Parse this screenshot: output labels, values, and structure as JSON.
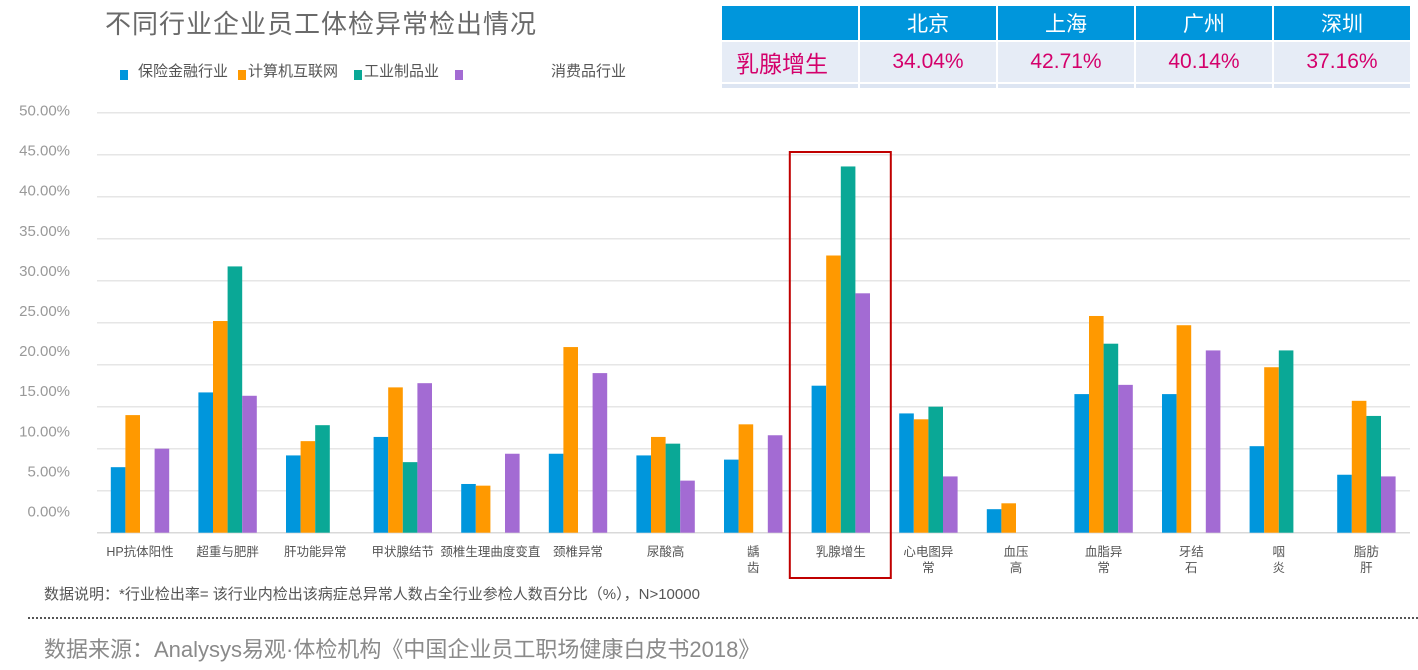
{
  "title": "不同行业企业员工体检异常检出情况",
  "table": {
    "headers": [
      "",
      "北京",
      "上海",
      "广州",
      "深圳"
    ],
    "row_label": "乳腺增生",
    "values": [
      "34.04%",
      "42.71%",
      "40.14%",
      "37.16%"
    ],
    "header_color": "#0096dc",
    "value_color": "#d4006b"
  },
  "chart_data": {
    "type": "bar",
    "title": "不同行业企业员工体检异常检出情况",
    "xlabel": "",
    "ylabel": "",
    "ylim": [
      0,
      50
    ],
    "grid": true,
    "legend_position": "top-left",
    "y_ticks": [
      "0.00%",
      "5.00%",
      "10.00%",
      "15.00%",
      "20.00%",
      "25.00%",
      "30.00%",
      "35.00%",
      "40.00%",
      "45.00%",
      "50.00%"
    ],
    "categories": [
      "HP抗体阳性",
      "超重与肥胖",
      "肝功能异常",
      "甲状腺结节",
      "颈椎生理曲度变直",
      "颈椎异常",
      "尿酸高",
      "龋\n齿",
      "乳腺增生",
      "心电图异\n常",
      "血压\n高",
      "血脂异\n常",
      "牙结\n石",
      "咽\n炎",
      "脂肪\n肝"
    ],
    "highlight_category": "乳腺增生",
    "series": [
      {
        "name": "保险金融行业",
        "color": "#0096dc",
        "values": [
          7.8,
          16.7,
          9.2,
          11.4,
          5.8,
          9.4,
          9.2,
          8.7,
          17.5,
          14.2,
          2.8,
          16.5,
          16.5,
          10.3,
          6.9
        ]
      },
      {
        "name": "计算机互联网",
        "color": "#ff9900",
        "values": [
          14.0,
          25.2,
          10.9,
          17.3,
          5.6,
          22.1,
          11.4,
          12.9,
          33.0,
          13.5,
          3.5,
          25.8,
          24.7,
          19.7,
          15.7
        ]
      },
      {
        "name": "工业制品业",
        "color": "#0aa896",
        "values": [
          null,
          31.7,
          12.8,
          8.4,
          null,
          null,
          10.6,
          null,
          43.6,
          15.0,
          null,
          22.5,
          null,
          21.7,
          13.9
        ]
      },
      {
        "name": "消费品行业",
        "color": "#a36bd3",
        "values": [
          10.0,
          16.3,
          null,
          17.8,
          9.4,
          19.0,
          6.2,
          11.6,
          28.5,
          6.7,
          null,
          17.6,
          21.7,
          null,
          6.7
        ]
      }
    ]
  },
  "note": "数据说明：*行业检出率= 该行业内检出该病症总异常人数占全行业参检人数百分比（%），N>10000",
  "source": "数据来源：Analysys易观·体检机构《中国企业员工职场健康白皮书2018》"
}
